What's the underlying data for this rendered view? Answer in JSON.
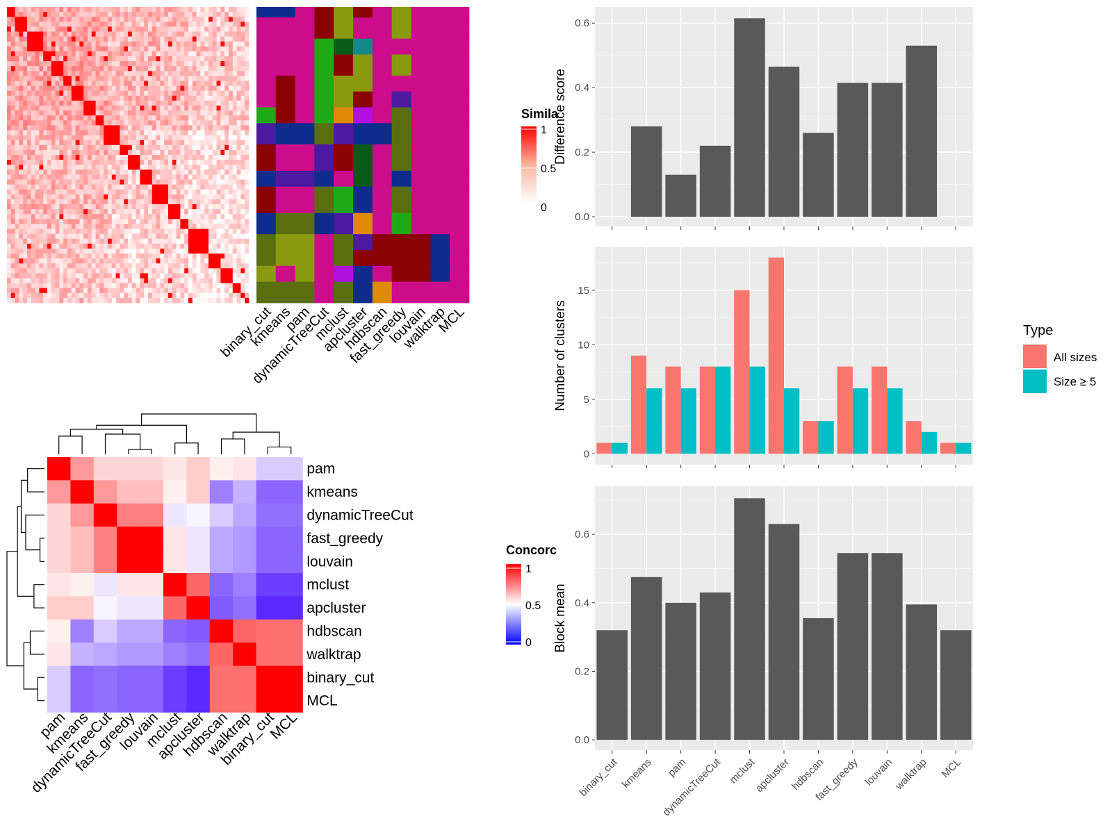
{
  "colors": {
    "panel_bg": "#ebebeb",
    "bar_dark": "#595959",
    "all_sizes": "#f8766d",
    "size_ge5": "#00bfc4",
    "heat_high": "#ff0000",
    "heat_mid": "#ffffff",
    "heat_low": "#0000ff"
  },
  "similarity_legend": {
    "title": "Simila",
    "ticks": [
      "1",
      "0.5",
      "0"
    ]
  },
  "concordance_legend": {
    "title": "Concorc",
    "ticks": [
      "1",
      "0.5",
      "0"
    ]
  },
  "top_heatmap": {
    "n": 60,
    "method_labels": [
      "binary_cut",
      "kmeans",
      "pam",
      "dynamicTreeCut",
      "mclust",
      "apcluster",
      "hdbscan",
      "fast_greedy",
      "louvain",
      "walktrap",
      "MCL"
    ],
    "class_palette": [
      "#cc0c8a",
      "#0f2b8c",
      "#1eaa17",
      "#8b0000",
      "#6b8c1a",
      "#4b1aa0",
      "#138a8a",
      "#e08a0a",
      "#b010e0",
      "#5a6e10",
      "#8a9a10",
      "#0a5a1a"
    ],
    "bands": [
      {
        "rows": 2,
        "cls": [
          1,
          1,
          0,
          3,
          10,
          3,
          0,
          10,
          0,
          0,
          0
        ]
      },
      {
        "rows": 4,
        "cls": [
          0,
          0,
          0,
          3,
          10,
          0,
          0,
          10,
          0,
          0,
          0
        ]
      },
      {
        "rows": 3,
        "cls": [
          0,
          0,
          0,
          2,
          11,
          6,
          0,
          0,
          0,
          0,
          0
        ]
      },
      {
        "rows": 4,
        "cls": [
          0,
          0,
          0,
          2,
          3,
          10,
          0,
          10,
          0,
          0,
          0
        ]
      },
      {
        "rows": 3,
        "cls": [
          0,
          3,
          0,
          2,
          10,
          10,
          0,
          0,
          0,
          0,
          0
        ]
      },
      {
        "rows": 3,
        "cls": [
          0,
          3,
          0,
          2,
          10,
          3,
          0,
          5,
          0,
          0,
          0
        ]
      },
      {
        "rows": 3,
        "cls": [
          2,
          3,
          0,
          2,
          7,
          8,
          0,
          9,
          0,
          0,
          0
        ]
      },
      {
        "rows": 4,
        "cls": [
          5,
          1,
          1,
          9,
          5,
          1,
          1,
          9,
          0,
          0,
          0
        ]
      },
      {
        "rows": 5,
        "cls": [
          3,
          0,
          0,
          5,
          3,
          11,
          0,
          9,
          0,
          0,
          0
        ]
      },
      {
        "rows": 3,
        "cls": [
          1,
          5,
          5,
          1,
          0,
          11,
          0,
          1,
          0,
          0,
          0
        ]
      },
      {
        "rows": 5,
        "cls": [
          3,
          0,
          0,
          9,
          2,
          1,
          0,
          9,
          0,
          0,
          0
        ]
      },
      {
        "rows": 4,
        "cls": [
          1,
          9,
          9,
          1,
          5,
          7,
          0,
          2,
          0,
          0,
          0
        ]
      },
      {
        "rows": 3,
        "cls": [
          9,
          10,
          10,
          0,
          9,
          5,
          3,
          3,
          3,
          1,
          0
        ]
      },
      {
        "rows": 3,
        "cls": [
          9,
          10,
          10,
          0,
          9,
          3,
          3,
          3,
          3,
          1,
          0
        ]
      },
      {
        "rows": 3,
        "cls": [
          10,
          0,
          10,
          0,
          8,
          1,
          0,
          3,
          3,
          1,
          0
        ]
      },
      {
        "rows": 4,
        "cls": [
          9,
          9,
          9,
          0,
          9,
          1,
          7,
          0,
          0,
          0,
          0
        ]
      }
    ]
  },
  "chart_data": [
    {
      "type": "heatmap",
      "title": "",
      "legend_title": "Simila",
      "note": "60x60 item similarity matrix",
      "block_sizes": [
        2,
        3,
        4,
        2,
        3,
        2,
        3,
        3,
        2,
        4,
        2,
        3,
        3,
        4,
        3,
        2,
        5,
        3,
        3,
        2,
        1,
        1,
        2
      ],
      "scale": [
        0,
        1
      ]
    },
    {
      "type": "heatmap",
      "title": "",
      "legend_title": "Concorc",
      "labels": [
        "pam",
        "kmeans",
        "dynamicTreeCut",
        "fast_greedy",
        "louvain",
        "mclust",
        "apcluster",
        "hdbscan",
        "walktrap",
        "binary_cut",
        "MCL"
      ],
      "values": [
        [
          1.0,
          0.7,
          0.58,
          0.58,
          0.58,
          0.55,
          0.6,
          0.53,
          0.55,
          0.4,
          0.4
        ],
        [
          0.7,
          1.0,
          0.7,
          0.63,
          0.63,
          0.53,
          0.6,
          0.25,
          0.35,
          0.2,
          0.2
        ],
        [
          0.58,
          0.7,
          1.0,
          0.75,
          0.75,
          0.45,
          0.48,
          0.4,
          0.33,
          0.22,
          0.22
        ],
        [
          0.58,
          0.63,
          0.75,
          1.0,
          1.0,
          0.55,
          0.45,
          0.33,
          0.3,
          0.2,
          0.2
        ],
        [
          0.58,
          0.63,
          0.75,
          1.0,
          1.0,
          0.55,
          0.45,
          0.33,
          0.3,
          0.2,
          0.2
        ],
        [
          0.55,
          0.53,
          0.45,
          0.55,
          0.55,
          1.0,
          0.8,
          0.2,
          0.25,
          0.12,
          0.12
        ],
        [
          0.6,
          0.6,
          0.48,
          0.45,
          0.45,
          0.8,
          1.0,
          0.18,
          0.22,
          0.08,
          0.08
        ],
        [
          0.53,
          0.25,
          0.4,
          0.33,
          0.33,
          0.2,
          0.18,
          1.0,
          0.8,
          0.78,
          0.78
        ],
        [
          0.55,
          0.35,
          0.33,
          0.3,
          0.3,
          0.25,
          0.22,
          0.8,
          1.0,
          0.78,
          0.78
        ],
        [
          0.4,
          0.2,
          0.22,
          0.2,
          0.2,
          0.12,
          0.08,
          0.78,
          0.78,
          1.0,
          1.0
        ],
        [
          0.4,
          0.2,
          0.22,
          0.2,
          0.2,
          0.12,
          0.08,
          0.78,
          0.78,
          1.0,
          1.0
        ]
      ],
      "scale": [
        0,
        1
      ]
    },
    {
      "type": "bar",
      "title": "",
      "categories": [
        "binary_cut",
        "kmeans",
        "pam",
        "dynamicTreeCut",
        "mclust",
        "apcluster",
        "hdbscan",
        "fast_greedy",
        "louvain",
        "walktrap",
        "MCL"
      ],
      "values": [
        0,
        0.28,
        0.13,
        0.22,
        0.615,
        0.465,
        0.26,
        0.415,
        0.415,
        0.53,
        0
      ],
      "xlabel": "",
      "ylabel": "Difference score",
      "ylim": [
        -0.03,
        0.65
      ],
      "yticks": [
        "0.0",
        "0.2",
        "0.4",
        "0.6"
      ]
    },
    {
      "type": "bar",
      "title": "",
      "categories": [
        "binary_cut",
        "kmeans",
        "pam",
        "dynamicTreeCut",
        "mclust",
        "apcluster",
        "hdbscan",
        "fast_greedy",
        "louvain",
        "walktrap",
        "MCL"
      ],
      "series": [
        {
          "name": "All sizes",
          "values": [
            1,
            9,
            8,
            8,
            15,
            18,
            3,
            8,
            8,
            3,
            1
          ]
        },
        {
          "name": "Size ≥ 5",
          "values": [
            1,
            6,
            6,
            8,
            8,
            6,
            3,
            6,
            6,
            2,
            1
          ]
        }
      ],
      "xlabel": "",
      "ylabel": "Number of clusters",
      "ylim": [
        -1,
        19
      ],
      "yticks": [
        "0",
        "5",
        "10",
        "15"
      ],
      "legend_title": "Type",
      "legend_position": "right"
    },
    {
      "type": "bar",
      "title": "",
      "categories": [
        "binary_cut",
        "kmeans",
        "pam",
        "dynamicTreeCut",
        "mclust",
        "apcluster",
        "hdbscan",
        "fast_greedy",
        "louvain",
        "walktrap",
        "MCL"
      ],
      "values": [
        0.32,
        0.475,
        0.4,
        0.43,
        0.705,
        0.63,
        0.355,
        0.545,
        0.545,
        0.395,
        0.32
      ],
      "xlabel": "",
      "ylabel": "Block mean",
      "ylim": [
        -0.03,
        0.74
      ],
      "yticks": [
        "0.0",
        "0.2",
        "0.4",
        "0.6"
      ]
    }
  ]
}
